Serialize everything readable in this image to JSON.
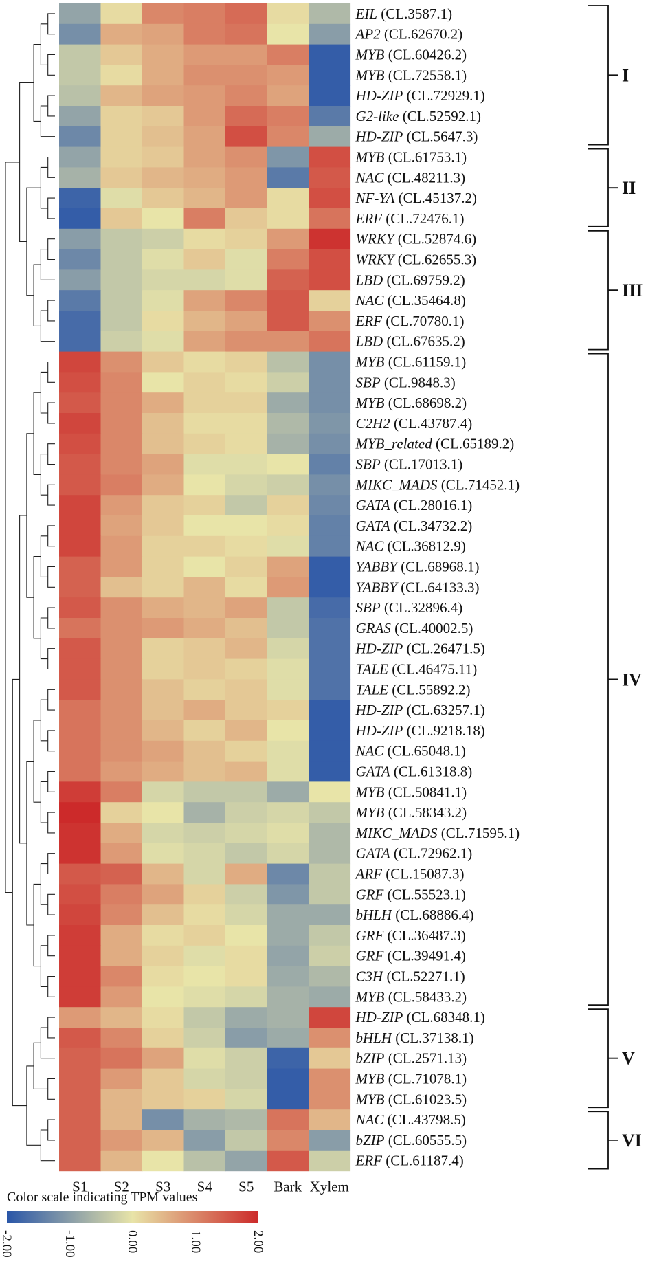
{
  "chart_data": {
    "type": "heatmap",
    "title": "",
    "columns": [
      "S1",
      "S2",
      "S3",
      "S4",
      "S5",
      "Bark",
      "Xylem"
    ],
    "rows": [
      {
        "gene": "EIL",
        "id": "(CL.3587.1)",
        "values": [
          -0.9,
          0.1,
          1.0,
          1.1,
          1.3,
          0.1,
          -0.6
        ]
      },
      {
        "gene": "AP2",
        "id": "(CL.62670.2)",
        "values": [
          -1.2,
          0.6,
          0.7,
          1.1,
          1.2,
          0.0,
          -1.0
        ]
      },
      {
        "gene": "MYB",
        "id": "(CL.60426.2)",
        "values": [
          -0.4,
          0.3,
          0.6,
          0.8,
          0.8,
          1.1,
          -1.9
        ]
      },
      {
        "gene": "MYB",
        "id": "(CL.72558.1)",
        "values": [
          -0.4,
          0.1,
          0.6,
          0.9,
          0.9,
          0.8,
          -1.9
        ]
      },
      {
        "gene": "HD-ZIP",
        "id": "(CL.72929.1)",
        "values": [
          -0.5,
          0.5,
          0.7,
          0.8,
          1.0,
          0.7,
          -1.9
        ]
      },
      {
        "gene": "G2-like",
        "id": "(CL.52592.1)",
        "values": [
          -0.9,
          0.2,
          0.3,
          0.8,
          1.3,
          1.1,
          -1.5
        ]
      },
      {
        "gene": "HD-ZIP",
        "id": "(CL.5647.3)",
        "values": [
          -1.3,
          0.2,
          0.4,
          0.7,
          1.6,
          1.0,
          -0.8
        ]
      },
      {
        "gene": "MYB",
        "id": "(CL.61753.1)",
        "values": [
          -0.9,
          0.2,
          0.3,
          0.7,
          0.9,
          -1.1,
          1.6
        ]
      },
      {
        "gene": "NAC",
        "id": "(CL.48211.3)",
        "values": [
          -0.7,
          0.3,
          0.5,
          0.6,
          0.8,
          -1.5,
          1.5
        ]
      },
      {
        "gene": "NF-YA",
        "id": "(CL.45137.2)",
        "values": [
          -1.8,
          -0.1,
          0.3,
          0.5,
          0.8,
          0.1,
          1.6
        ]
      },
      {
        "gene": "ERF",
        "id": "(CL.72476.1)",
        "values": [
          -1.9,
          0.3,
          0.0,
          1.1,
          0.3,
          0.1,
          1.2
        ]
      },
      {
        "gene": "WRKY",
        "id": "(CL.52874.6)",
        "values": [
          -1.0,
          -0.4,
          -0.3,
          0.1,
          0.2,
          0.8,
          1.9
        ]
      },
      {
        "gene": "WRKY",
        "id": "(CL.62655.3)",
        "values": [
          -1.3,
          -0.4,
          -0.1,
          0.3,
          -0.1,
          1.1,
          1.6
        ]
      },
      {
        "gene": "LBD",
        "id": "(CL.69759.2)",
        "values": [
          -1.0,
          -0.4,
          -0.2,
          -0.2,
          -0.1,
          1.4,
          1.6
        ]
      },
      {
        "gene": "NAC",
        "id": "(CL.35464.8)",
        "values": [
          -1.5,
          -0.4,
          -0.1,
          0.7,
          1.0,
          1.5,
          0.2
        ]
      },
      {
        "gene": "ERF",
        "id": "(CL.70780.1)",
        "values": [
          -1.7,
          -0.4,
          0.1,
          0.5,
          0.7,
          1.5,
          0.9
        ]
      },
      {
        "gene": "LBD",
        "id": "(CL.67635.2)",
        "values": [
          -1.7,
          -0.3,
          -0.1,
          0.7,
          0.9,
          0.9,
          1.2
        ]
      },
      {
        "gene": "MYB",
        "id": "(CL.61159.1)",
        "values": [
          1.7,
          0.9,
          0.3,
          0.1,
          0.2,
          -0.5,
          -1.2
        ]
      },
      {
        "gene": "SBP",
        "id": "(CL.9848.3)",
        "values": [
          1.6,
          1.0,
          0.0,
          0.2,
          0.1,
          -0.3,
          -1.2
        ]
      },
      {
        "gene": "MYB",
        "id": "(CL.68698.2)",
        "values": [
          1.5,
          1.0,
          0.6,
          0.2,
          0.2,
          -0.8,
          -1.2
        ]
      },
      {
        "gene": "C2H2",
        "id": "(CL.43787.4)",
        "values": [
          1.7,
          1.0,
          0.4,
          0.1,
          0.1,
          -0.6,
          -1.1
        ]
      },
      {
        "gene": "MYB_related",
        "id": "(CL.65189.2)",
        "values": [
          1.6,
          1.0,
          0.4,
          0.2,
          0.1,
          -0.7,
          -1.2
        ]
      },
      {
        "gene": "SBP",
        "id": "(CL.17013.1)",
        "values": [
          1.5,
          1.0,
          0.7,
          -0.1,
          -0.1,
          0.0,
          -1.4
        ]
      },
      {
        "gene": "MIKC_MADS",
        "id": "(CL.71452.1)",
        "values": [
          1.5,
          1.1,
          0.6,
          0.0,
          -0.2,
          -0.3,
          -1.2
        ]
      },
      {
        "gene": "GATA",
        "id": "(CL.28016.1)",
        "values": [
          1.7,
          0.8,
          0.3,
          0.2,
          -0.4,
          0.2,
          -1.3
        ]
      },
      {
        "gene": "GATA",
        "id": "(CL.34732.2)",
        "values": [
          1.7,
          0.7,
          0.3,
          0.0,
          0.0,
          0.1,
          -1.4
        ]
      },
      {
        "gene": "NAC",
        "id": "(CL.36812.9)",
        "values": [
          1.7,
          0.8,
          0.2,
          0.2,
          0.1,
          -0.1,
          -1.4
        ]
      },
      {
        "gene": "YABBY",
        "id": "(CL.68968.1)",
        "values": [
          1.4,
          0.8,
          0.2,
          0.0,
          0.2,
          0.7,
          -1.9
        ]
      },
      {
        "gene": "YABBY",
        "id": "(CL.64133.3)",
        "values": [
          1.4,
          0.4,
          0.2,
          0.5,
          0.1,
          0.8,
          -1.9
        ]
      },
      {
        "gene": "SBP",
        "id": "(CL.32896.4)",
        "values": [
          1.5,
          0.9,
          0.6,
          0.5,
          0.7,
          -0.4,
          -1.7
        ]
      },
      {
        "gene": "GRAS",
        "id": "(CL.40002.5)",
        "values": [
          1.2,
          0.9,
          0.8,
          0.6,
          0.4,
          -0.4,
          -1.6
        ]
      },
      {
        "gene": "HD-ZIP",
        "id": "(CL.26471.5)",
        "values": [
          1.5,
          0.9,
          0.2,
          0.3,
          0.5,
          -0.2,
          -1.6
        ]
      },
      {
        "gene": "TALE",
        "id": "(CL.46475.11)",
        "values": [
          1.5,
          0.9,
          0.2,
          0.3,
          0.2,
          -0.1,
          -1.6
        ]
      },
      {
        "gene": "TALE",
        "id": "(CL.55892.2)",
        "values": [
          1.5,
          0.9,
          0.4,
          0.2,
          0.3,
          -0.1,
          -1.6
        ]
      },
      {
        "gene": "HD-ZIP",
        "id": "(CL.63257.1)",
        "values": [
          1.2,
          0.9,
          0.4,
          0.6,
          0.3,
          0.2,
          -1.9
        ]
      },
      {
        "gene": "HD-ZIP",
        "id": "(CL.9218.18)",
        "values": [
          1.2,
          0.9,
          0.5,
          0.2,
          0.5,
          0.0,
          -1.9
        ]
      },
      {
        "gene": "NAC",
        "id": "(CL.65048.1)",
        "values": [
          1.2,
          0.9,
          0.7,
          0.4,
          0.2,
          -0.1,
          -1.9
        ]
      },
      {
        "gene": "GATA",
        "id": "(CL.61318.8)",
        "values": [
          1.2,
          0.8,
          0.6,
          0.4,
          0.5,
          -0.1,
          -1.9
        ]
      },
      {
        "gene": "MYB",
        "id": "(CL.50841.1)",
        "values": [
          1.8,
          1.1,
          -0.2,
          -0.4,
          -0.4,
          -0.8,
          0.0
        ]
      },
      {
        "gene": "MYB",
        "id": "(CL.58343.2)",
        "values": [
          2.0,
          0.2,
          0.0,
          -0.7,
          -0.3,
          -0.2,
          -0.4
        ]
      },
      {
        "gene": "MIKC_MADS",
        "id": "(CL.71595.1)",
        "values": [
          1.9,
          0.6,
          -0.2,
          -0.3,
          -0.2,
          -0.1,
          -0.6
        ]
      },
      {
        "gene": "GATA",
        "id": "(CL.72962.1)",
        "values": [
          1.9,
          0.8,
          -0.1,
          -0.2,
          -0.4,
          -0.2,
          -0.6
        ]
      },
      {
        "gene": "ARF",
        "id": "(CL.15087.3)",
        "values": [
          1.5,
          1.4,
          0.5,
          -0.2,
          0.6,
          -1.3,
          -0.4
        ]
      },
      {
        "gene": "GRF",
        "id": "(CL.55523.1)",
        "values": [
          1.6,
          1.1,
          0.7,
          0.2,
          -0.3,
          -1.1,
          -0.4
        ]
      },
      {
        "gene": "bHLH",
        "id": "(CL.68886.4)",
        "values": [
          1.7,
          1.0,
          0.4,
          0.1,
          -0.2,
          -0.8,
          -0.8
        ]
      },
      {
        "gene": "GRF",
        "id": "(CL.36487.3)",
        "values": [
          1.8,
          0.6,
          0.1,
          0.2,
          0.0,
          -0.8,
          -0.4
        ]
      },
      {
        "gene": "GRF",
        "id": "(CL.39491.4)",
        "values": [
          1.8,
          0.6,
          0.2,
          -0.1,
          0.1,
          -0.9,
          -0.3
        ]
      },
      {
        "gene": "C3H",
        "id": "(CL.52271.1)",
        "values": [
          1.8,
          1.0,
          0.1,
          0.0,
          0.1,
          -0.8,
          -0.6
        ]
      },
      {
        "gene": "MYB",
        "id": "(CL.58433.2)",
        "values": [
          1.8,
          0.8,
          0.0,
          -0.1,
          -0.2,
          -0.7,
          -0.8
        ]
      },
      {
        "gene": "HD-ZIP",
        "id": "(CL.68348.1)",
        "values": [
          0.8,
          0.5,
          0.1,
          -0.4,
          -0.8,
          -0.7,
          1.7
        ]
      },
      {
        "gene": "bHLH",
        "id": "(CL.37138.1)",
        "values": [
          1.5,
          1.0,
          0.2,
          -0.3,
          -1.0,
          -0.8,
          0.9
        ]
      },
      {
        "gene": "bZIP",
        "id": "(CL.2571.13)",
        "values": [
          1.4,
          1.2,
          0.7,
          -0.1,
          -0.3,
          -1.8,
          0.3
        ]
      },
      {
        "gene": "MYB",
        "id": "(CL.71078.1)",
        "values": [
          1.4,
          0.8,
          0.3,
          -0.2,
          -0.3,
          -1.9,
          0.9
        ]
      },
      {
        "gene": "MYB",
        "id": "(CL.61023.5)",
        "values": [
          1.4,
          0.5,
          0.3,
          0.2,
          -0.2,
          -1.9,
          0.9
        ]
      },
      {
        "gene": "NAC",
        "id": "(CL.43798.5)",
        "values": [
          1.4,
          0.5,
          -1.2,
          -0.7,
          -0.6,
          1.2,
          0.5
        ]
      },
      {
        "gene": "bZIP",
        "id": "(CL.60555.5)",
        "values": [
          1.4,
          0.8,
          0.5,
          -1.0,
          -0.4,
          1.0,
          -1.0
        ]
      },
      {
        "gene": "ERF",
        "id": "(CL.61187.4)",
        "values": [
          1.4,
          0.5,
          0.0,
          -0.5,
          -0.9,
          1.5,
          -0.3
        ]
      }
    ],
    "groups": [
      {
        "label": "I",
        "first_row": 0,
        "last_row": 6
      },
      {
        "label": "II",
        "first_row": 7,
        "last_row": 10
      },
      {
        "label": "III",
        "first_row": 11,
        "last_row": 16
      },
      {
        "label": "IV",
        "first_row": 17,
        "last_row": 48
      },
      {
        "label": "V",
        "first_row": 49,
        "last_row": 53
      },
      {
        "label": "VI",
        "first_row": 54,
        "last_row": 56
      }
    ],
    "color_scale": {
      "label": "Color scale  indicating TPM values",
      "min": -2.0,
      "max": 2.0,
      "ticks": [
        "-2.00",
        "-1.00",
        "0.00",
        "1.00",
        "2.00"
      ],
      "stops": [
        "#2a56a8",
        "#e8e4a8",
        "#cc2a2a"
      ]
    },
    "dendrogram": "row clustering tree drawn at left"
  }
}
